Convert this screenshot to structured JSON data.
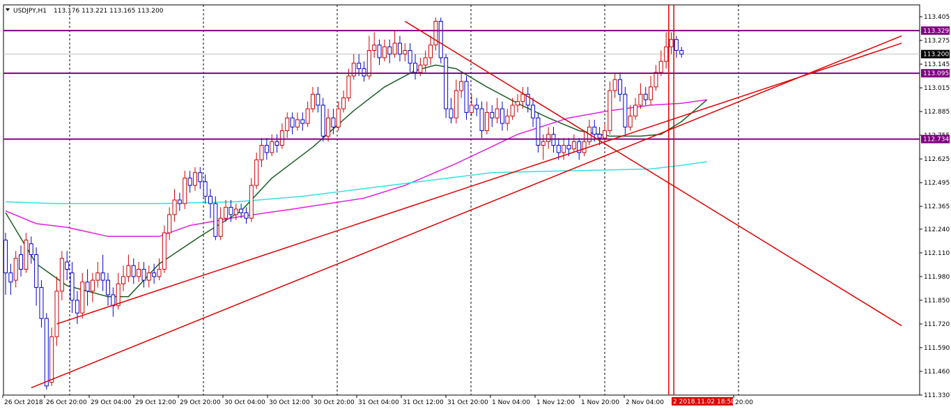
{
  "window": {
    "symbol": "USDJPY,H1",
    "ohlc": "113.176 113.221 113.165 113.200",
    "dropdown_icon": "triangle-down-icon"
  },
  "colors": {
    "bull": "#cc0000",
    "bear": "#0000cc",
    "ma_fast": "#1b5e20",
    "ma_mid": "#e020e0",
    "ma_slow": "#33e0e0",
    "hline": "#800080",
    "trend": "#e00000",
    "price_tag": "#000000",
    "cursor_tag": "#e00000"
  },
  "chart_data": {
    "type": "candlestick",
    "ylim": [
      111.33,
      113.47
    ],
    "y_ticks": [
      "113.405",
      "113.275",
      "113.145",
      "113.015",
      "112.885",
      "112.755",
      "112.625",
      "112.495",
      "112.365",
      "112.240",
      "112.110",
      "111.980",
      "111.850",
      "111.720",
      "111.590",
      "111.460",
      "111.330"
    ],
    "x_ticks": [
      "26 Oct 2018",
      "26 Oct 20:00",
      "29 Oct 04:00",
      "29 Oct 12:00",
      "29 Oct 20:00",
      "30 Oct 04:00",
      "30 Oct 12:00",
      "30 Oct 20:00",
      "31 Oct 04:00",
      "31 Oct 12:00",
      "31 Oct 20:00",
      "1 Nov 04:00",
      "1 Nov 12:00",
      "1 Nov 20:00",
      "2 Nov 04:00",
      "2 2018.11.02 18:50",
      "20:00"
    ],
    "horizontal_levels": [
      {
        "label": "113.329",
        "value": 113.329
      },
      {
        "label": "113.095",
        "value": 113.095
      },
      {
        "label": "112.734",
        "value": 112.734
      }
    ],
    "current_price": {
      "label": "113.200",
      "value": 113.2
    },
    "cursor_time_label": "2 2018.11.02 18:50",
    "candles": [
      [
        112.18,
        112.0,
        112.22,
        111.88
      ],
      [
        112.0,
        111.95,
        112.05,
        111.88
      ],
      [
        111.96,
        112.08,
        112.12,
        111.92
      ],
      [
        112.1,
        112.02,
        112.15,
        111.98
      ],
      [
        112.02,
        112.18,
        112.22,
        112.0
      ],
      [
        112.16,
        112.1,
        112.2,
        112.05
      ],
      [
        112.1,
        111.92,
        112.14,
        111.82
      ],
      [
        111.92,
        111.75,
        111.96,
        111.7
      ],
      [
        111.75,
        111.38,
        111.78,
        111.36
      ],
      [
        111.4,
        111.65,
        111.7,
        111.38
      ],
      [
        111.65,
        111.9,
        111.98,
        111.6
      ],
      [
        111.9,
        112.08,
        112.12,
        111.85
      ],
      [
        112.06,
        112.02,
        112.12,
        111.96
      ],
      [
        112.0,
        111.85,
        112.06,
        111.78
      ],
      [
        111.85,
        111.78,
        111.9,
        111.72
      ],
      [
        111.78,
        111.95,
        112.0,
        111.75
      ],
      [
        111.95,
        111.9,
        112.02,
        111.82
      ],
      [
        111.9,
        111.96,
        112.0,
        111.84
      ],
      [
        111.96,
        112.0,
        112.06,
        111.92
      ],
      [
        112.0,
        111.96,
        112.1,
        111.9
      ],
      [
        111.96,
        111.88,
        112.0,
        111.82
      ],
      [
        111.88,
        111.82,
        111.92,
        111.76
      ],
      [
        111.82,
        111.94,
        112.0,
        111.8
      ],
      [
        111.94,
        111.98,
        112.04,
        111.9
      ],
      [
        111.98,
        112.04,
        112.1,
        111.95
      ],
      [
        112.04,
        111.98,
        112.08,
        111.94
      ],
      [
        111.98,
        112.02,
        112.06,
        111.95
      ],
      [
        112.02,
        111.96,
        112.06,
        111.92
      ],
      [
        111.96,
        112.0,
        112.04,
        111.92
      ],
      [
        112.0,
        111.98,
        112.05,
        111.94
      ],
      [
        111.98,
        112.02,
        112.08,
        111.96
      ],
      [
        112.02,
        112.22,
        112.26,
        112.0
      ],
      [
        112.22,
        112.32,
        112.36,
        112.18
      ],
      [
        112.32,
        112.4,
        112.46,
        112.28
      ],
      [
        112.4,
        112.38,
        112.44,
        112.34
      ],
      [
        112.38,
        112.52,
        112.56,
        112.35
      ],
      [
        112.52,
        112.48,
        112.56,
        112.44
      ],
      [
        112.48,
        112.55,
        112.58,
        112.45
      ],
      [
        112.55,
        112.5,
        112.58,
        112.46
      ],
      [
        112.5,
        112.42,
        112.54,
        112.38
      ],
      [
        112.42,
        112.38,
        112.46,
        112.3
      ],
      [
        112.38,
        112.2,
        112.42,
        112.18
      ],
      [
        112.2,
        112.3,
        112.36,
        112.18
      ],
      [
        112.3,
        112.36,
        112.4,
        112.28
      ],
      [
        112.36,
        112.32,
        112.4,
        112.28
      ],
      [
        112.32,
        112.35,
        112.38,
        112.29
      ],
      [
        112.35,
        112.33,
        112.38,
        112.3
      ],
      [
        112.33,
        112.3,
        112.36,
        112.27
      ],
      [
        112.3,
        112.48,
        112.52,
        112.28
      ],
      [
        112.48,
        112.62,
        112.66,
        112.46
      ],
      [
        112.62,
        112.7,
        112.74,
        112.58
      ],
      [
        112.7,
        112.66,
        112.74,
        112.62
      ],
      [
        112.66,
        112.72,
        112.76,
        112.64
      ],
      [
        112.72,
        112.7,
        112.76,
        112.66
      ],
      [
        112.7,
        112.78,
        112.82,
        112.68
      ],
      [
        112.78,
        112.85,
        112.88,
        112.74
      ],
      [
        112.85,
        112.8,
        112.88,
        112.76
      ],
      [
        112.8,
        112.84,
        112.88,
        112.78
      ],
      [
        112.84,
        112.82,
        112.88,
        112.78
      ],
      [
        112.82,
        112.9,
        112.94,
        112.8
      ],
      [
        112.9,
        112.98,
        113.02,
        112.88
      ],
      [
        112.98,
        112.92,
        113.02,
        112.88
      ],
      [
        112.92,
        112.75,
        112.96,
        112.72
      ],
      [
        112.75,
        112.85,
        112.9,
        112.72
      ],
      [
        112.85,
        112.8,
        112.9,
        112.76
      ],
      [
        112.8,
        112.9,
        112.94,
        112.78
      ],
      [
        112.9,
        112.96,
        113.0,
        112.88
      ],
      [
        112.96,
        113.08,
        113.12,
        112.94
      ],
      [
        113.08,
        113.15,
        113.2,
        113.06
      ],
      [
        113.15,
        113.12,
        113.2,
        113.08
      ],
      [
        113.12,
        113.08,
        113.16,
        113.05
      ],
      [
        113.08,
        113.22,
        113.3,
        113.06
      ],
      [
        113.22,
        113.25,
        113.32,
        113.18
      ],
      [
        113.25,
        113.18,
        113.28,
        113.14
      ],
      [
        113.18,
        113.24,
        113.28,
        113.16
      ],
      [
        113.24,
        113.2,
        113.28,
        113.15
      ],
      [
        113.2,
        113.26,
        113.33,
        113.18
      ],
      [
        113.26,
        113.2,
        113.3,
        113.16
      ],
      [
        113.2,
        113.22,
        113.26,
        113.16
      ],
      [
        113.22,
        113.15,
        113.26,
        113.1
      ],
      [
        113.15,
        113.1,
        113.2,
        113.06
      ],
      [
        113.1,
        113.14,
        113.18,
        113.08
      ],
      [
        113.14,
        113.18,
        113.22,
        113.1
      ],
      [
        113.18,
        113.25,
        113.3,
        113.14
      ],
      [
        113.25,
        113.38,
        113.4,
        113.22
      ],
      [
        113.38,
        113.18,
        113.4,
        113.15
      ],
      [
        113.18,
        112.9,
        113.2,
        112.85
      ],
      [
        112.9,
        112.85,
        112.96,
        112.82
      ],
      [
        112.85,
        113.0,
        113.06,
        112.82
      ],
      [
        113.0,
        113.05,
        113.1,
        112.96
      ],
      [
        113.05,
        112.88,
        113.08,
        112.84
      ],
      [
        112.88,
        112.92,
        112.98,
        112.86
      ],
      [
        112.92,
        112.9,
        112.96,
        112.86
      ],
      [
        112.9,
        112.78,
        112.94,
        112.74
      ],
      [
        112.78,
        112.88,
        112.94,
        112.76
      ],
      [
        112.88,
        112.85,
        112.92,
        112.8
      ],
      [
        112.85,
        112.9,
        112.96,
        112.82
      ],
      [
        112.9,
        112.82,
        112.94,
        112.78
      ],
      [
        112.82,
        112.86,
        112.9,
        112.78
      ],
      [
        112.86,
        112.92,
        112.96,
        112.84
      ],
      [
        112.92,
        112.94,
        112.98,
        112.88
      ],
      [
        112.94,
        112.98,
        113.02,
        112.9
      ],
      [
        112.98,
        112.92,
        113.02,
        112.88
      ],
      [
        112.92,
        112.85,
        112.96,
        112.8
      ],
      [
        112.85,
        112.7,
        112.88,
        112.66
      ],
      [
        112.7,
        112.72,
        112.76,
        112.62
      ],
      [
        112.72,
        112.76,
        112.8,
        112.68
      ],
      [
        112.76,
        112.7,
        112.8,
        112.66
      ],
      [
        112.7,
        112.66,
        112.74,
        112.62
      ],
      [
        112.66,
        112.7,
        112.74,
        112.62
      ],
      [
        112.7,
        112.68,
        112.74,
        112.64
      ],
      [
        112.68,
        112.72,
        112.76,
        112.66
      ],
      [
        112.72,
        112.66,
        112.74,
        112.62
      ],
      [
        112.66,
        112.72,
        112.78,
        112.64
      ],
      [
        112.72,
        112.8,
        112.84,
        112.7
      ],
      [
        112.8,
        112.76,
        112.84,
        112.72
      ],
      [
        112.76,
        112.74,
        112.8,
        112.7
      ],
      [
        112.74,
        112.78,
        112.82,
        112.72
      ],
      [
        112.78,
        113.0,
        113.05,
        112.76
      ],
      [
        113.0,
        113.06,
        113.1,
        112.96
      ],
      [
        113.06,
        112.98,
        113.1,
        112.94
      ],
      [
        112.98,
        112.8,
        113.02,
        112.76
      ],
      [
        112.8,
        112.86,
        112.92,
        112.78
      ],
      [
        112.86,
        112.92,
        112.96,
        112.84
      ],
      [
        112.92,
        112.98,
        113.04,
        112.9
      ],
      [
        112.98,
        112.95,
        113.02,
        112.92
      ],
      [
        112.95,
        113.02,
        113.08,
        112.92
      ],
      [
        113.02,
        113.1,
        113.14,
        113.0
      ],
      [
        113.1,
        113.16,
        113.22,
        113.08
      ],
      [
        113.16,
        113.24,
        113.32,
        113.12
      ],
      [
        113.24,
        113.28,
        113.32,
        113.2
      ],
      [
        113.28,
        113.22,
        113.3,
        113.18
      ],
      [
        113.22,
        113.2,
        113.24,
        113.18
      ]
    ],
    "series": [
      {
        "name": "",
        "color": "#1b5e20",
        "points": [
          [
            0,
            112.33
          ],
          [
            6,
            112.05
          ],
          [
            12,
            111.93
          ],
          [
            20,
            111.87
          ],
          [
            24,
            111.87
          ],
          [
            30,
            112.05
          ],
          [
            38,
            112.2
          ],
          [
            46,
            112.34
          ],
          [
            52,
            112.52
          ],
          [
            60,
            112.69
          ],
          [
            68,
            112.89
          ],
          [
            74,
            113.02
          ],
          [
            80,
            113.11
          ],
          [
            84,
            113.14
          ],
          [
            88,
            113.12
          ],
          [
            94,
            113.02
          ],
          [
            100,
            112.93
          ],
          [
            106,
            112.85
          ],
          [
            112,
            112.78
          ],
          [
            118,
            112.75
          ],
          [
            124,
            112.75
          ],
          [
            128,
            112.76
          ],
          [
            132,
            112.83
          ],
          [
            137,
            112.95
          ]
        ]
      },
      {
        "name": "",
        "color": "#e020e0",
        "points": [
          [
            0,
            112.34
          ],
          [
            6,
            112.27
          ],
          [
            12,
            112.25
          ],
          [
            20,
            112.2
          ],
          [
            30,
            112.2
          ],
          [
            36,
            112.26
          ],
          [
            46,
            112.31
          ],
          [
            56,
            112.35
          ],
          [
            70,
            112.41
          ],
          [
            78,
            112.48
          ],
          [
            88,
            112.6
          ],
          [
            100,
            112.76
          ],
          [
            110,
            112.85
          ],
          [
            118,
            112.89
          ],
          [
            126,
            112.92
          ],
          [
            132,
            112.93
          ],
          [
            137,
            112.95
          ]
        ]
      },
      {
        "name": "",
        "color": "#33e0e0",
        "points": [
          [
            0,
            112.39
          ],
          [
            10,
            112.38
          ],
          [
            20,
            112.38
          ],
          [
            30,
            112.38
          ],
          [
            45,
            112.39
          ],
          [
            58,
            112.42
          ],
          [
            75,
            112.48
          ],
          [
            95,
            112.55
          ],
          [
            110,
            112.56
          ],
          [
            126,
            112.57
          ],
          [
            132,
            112.59
          ],
          [
            137,
            112.61
          ]
        ]
      }
    ],
    "trend_lines": [
      {
        "from": [
          10,
          111.72
        ],
        "to": [
          175,
          113.26
        ]
      },
      {
        "from": [
          5,
          111.37
        ],
        "to": [
          175,
          113.3
        ]
      },
      {
        "from": [
          78,
          113.38
        ],
        "to": [
          175,
          111.71
        ]
      }
    ],
    "vertical_lines": [
      129.5,
      130.5
    ]
  }
}
